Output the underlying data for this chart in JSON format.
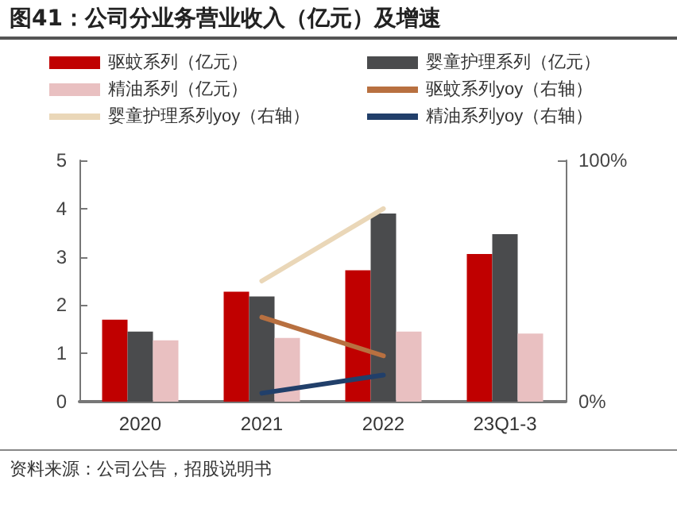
{
  "chart_data": {
    "type": "bar",
    "title": "图41：公司分业务营业收入（亿元）及增速",
    "categories": [
      "2020",
      "2021",
      "2022",
      "23Q1-3"
    ],
    "series": [
      {
        "name": "驱蚊系列（亿元）",
        "color": "#c00000",
        "values": [
          1.7,
          2.28,
          2.72,
          3.06
        ]
      },
      {
        "name": "婴童护理系列（亿元）",
        "color": "#4a4b4d",
        "values": [
          1.45,
          2.18,
          3.9,
          3.47
        ]
      },
      {
        "name": "精油系列（亿元）",
        "color": "#e9c0c1",
        "values": [
          1.27,
          1.32,
          1.45,
          1.41
        ]
      },
      {
        "name": "驱蚊系列yoy（右轴）",
        "color": "#b87040",
        "type": "line",
        "axis": "y2",
        "values": [
          null,
          35,
          19,
          null
        ]
      },
      {
        "name": "婴童护理系列yoy（右轴）",
        "color": "#ead7b8",
        "type": "line",
        "axis": "y2",
        "values": [
          null,
          50,
          80,
          null
        ]
      },
      {
        "name": "精油系列yoy（右轴）",
        "color": "#213f6a",
        "type": "line",
        "axis": "y2",
        "values": [
          null,
          3.5,
          11,
          null
        ]
      }
    ],
    "ylim": [
      0,
      5
    ],
    "yticks": [
      0,
      1,
      2,
      3,
      4,
      5
    ],
    "y2lim": [
      0,
      100
    ],
    "y2ticks": [
      {
        "value": 0,
        "label": "0%"
      },
      {
        "value": 100,
        "label": "100%"
      }
    ],
    "grid": false,
    "legend": "top",
    "marker": "none",
    "line_style": "solid",
    "annotations": [
      "资料来源：公司公告，招股说明书"
    ]
  }
}
